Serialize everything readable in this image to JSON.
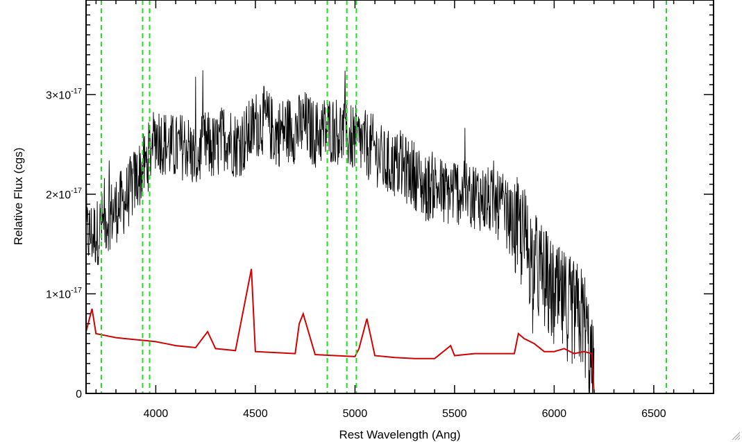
{
  "chart_data": {
    "type": "line",
    "xlabel": "Rest Wavelength (Ang)",
    "ylabel": "Relative Flux (cgs)",
    "xlim": [
      3650,
      6800
    ],
    "ylim": [
      0,
      3.95e-17
    ],
    "x_ticks": [
      {
        "value": 4000,
        "label": "4000"
      },
      {
        "value": 4500,
        "label": "4500"
      },
      {
        "value": 5000,
        "label": "5000"
      },
      {
        "value": 5500,
        "label": "5500"
      },
      {
        "value": 6000,
        "label": "6000"
      },
      {
        "value": 6500,
        "label": "6500"
      }
    ],
    "y_ticks": [
      {
        "value": 0,
        "label": "0",
        "exp": ""
      },
      {
        "value": 1e-17,
        "label": "1×10",
        "exp": "-17"
      },
      {
        "value": 2e-17,
        "label": "2×10",
        "exp": "-17"
      },
      {
        "value": 3e-17,
        "label": "3×10",
        "exp": "-17"
      }
    ],
    "grid": false,
    "legend": "none",
    "series": [
      {
        "color": "#000000",
        "x": [
          3650,
          3700,
          3750,
          3800,
          3850,
          3900,
          3950,
          4000,
          4050,
          4100,
          4150,
          4200,
          4250,
          4300,
          4350,
          4400,
          4450,
          4500,
          4550,
          4600,
          4650,
          4700,
          4750,
          4800,
          4850,
          4900,
          4950,
          5000,
          5050,
          5100,
          5150,
          5200,
          5250,
          5300,
          5350,
          5400,
          5450,
          5500,
          5550,
          5600,
          5650,
          5700,
          5750,
          5800,
          5850,
          5900,
          5950,
          6000,
          6050,
          6100,
          6150,
          6200
        ],
        "values": [
          1.6e-17,
          1.6e-17,
          1.75e-17,
          1.85e-17,
          1.95e-17,
          2.15e-17,
          2.3e-17,
          2.6e-17,
          2.5e-17,
          2.45e-17,
          2.5e-17,
          2.35e-17,
          2.5e-17,
          2.45e-17,
          2.6e-17,
          2.5e-17,
          2.55e-17,
          2.7e-17,
          2.75e-17,
          2.6e-17,
          2.65e-17,
          2.65e-17,
          2.7e-17,
          2.6e-17,
          2.65e-17,
          2.65e-17,
          2.6e-17,
          2.55e-17,
          2.5e-17,
          2.45e-17,
          2.3e-17,
          2.3e-17,
          2.25e-17,
          2.2e-17,
          2.05e-17,
          2.1e-17,
          2e-17,
          2.05e-17,
          2e-17,
          2e-17,
          1.95e-17,
          1.9e-17,
          1.85e-17,
          1.65e-17,
          1.55e-17,
          1.3e-17,
          1.15e-17,
          9.5e-18,
          9e-18,
          8e-18,
          7.5e-18,
          1e-18
        ]
      },
      {
        "color": "#d40000",
        "x": [
          3650,
          3680,
          3700,
          3750,
          3800,
          3850,
          3900,
          3950,
          4000,
          4050,
          4100,
          4200,
          4260,
          4300,
          4400,
          4480,
          4500,
          4600,
          4700,
          4720,
          4740,
          4800,
          4900,
          5000,
          5020,
          5060,
          5100,
          5200,
          5300,
          5400,
          5480,
          5500,
          5600,
          5700,
          5800,
          5820,
          5850,
          5900,
          5950,
          6000,
          6050,
          6100,
          6150,
          6190,
          6200,
          6800
        ],
        "values": [
          6.2e-18,
          8.5e-18,
          6e-18,
          5.8e-18,
          5.6e-18,
          5.5e-18,
          5.4e-18,
          5.3e-18,
          5.2e-18,
          5e-18,
          4.8e-18,
          4.6e-18,
          6.2e-18,
          4.5e-18,
          4.3e-18,
          1.25e-17,
          4.2e-18,
          4.1e-18,
          4e-18,
          7e-18,
          8e-18,
          3.9e-18,
          3.8e-18,
          3.7e-18,
          4.5e-18,
          7.5e-18,
          3.8e-18,
          3.6e-18,
          3.5e-18,
          3.5e-18,
          4.8e-18,
          3.8e-18,
          4e-18,
          4e-18,
          4e-18,
          6e-18,
          5.5e-18,
          5e-18,
          4.2e-18,
          4.2e-18,
          4.5e-18,
          4e-18,
          4.2e-18,
          4e-18,
          0.0,
          0.0
        ]
      }
    ],
    "reference_lines": [
      3727,
      3934,
      3969,
      4861,
      4959,
      5007,
      6563
    ],
    "reference_line_color": "#22dd22"
  }
}
